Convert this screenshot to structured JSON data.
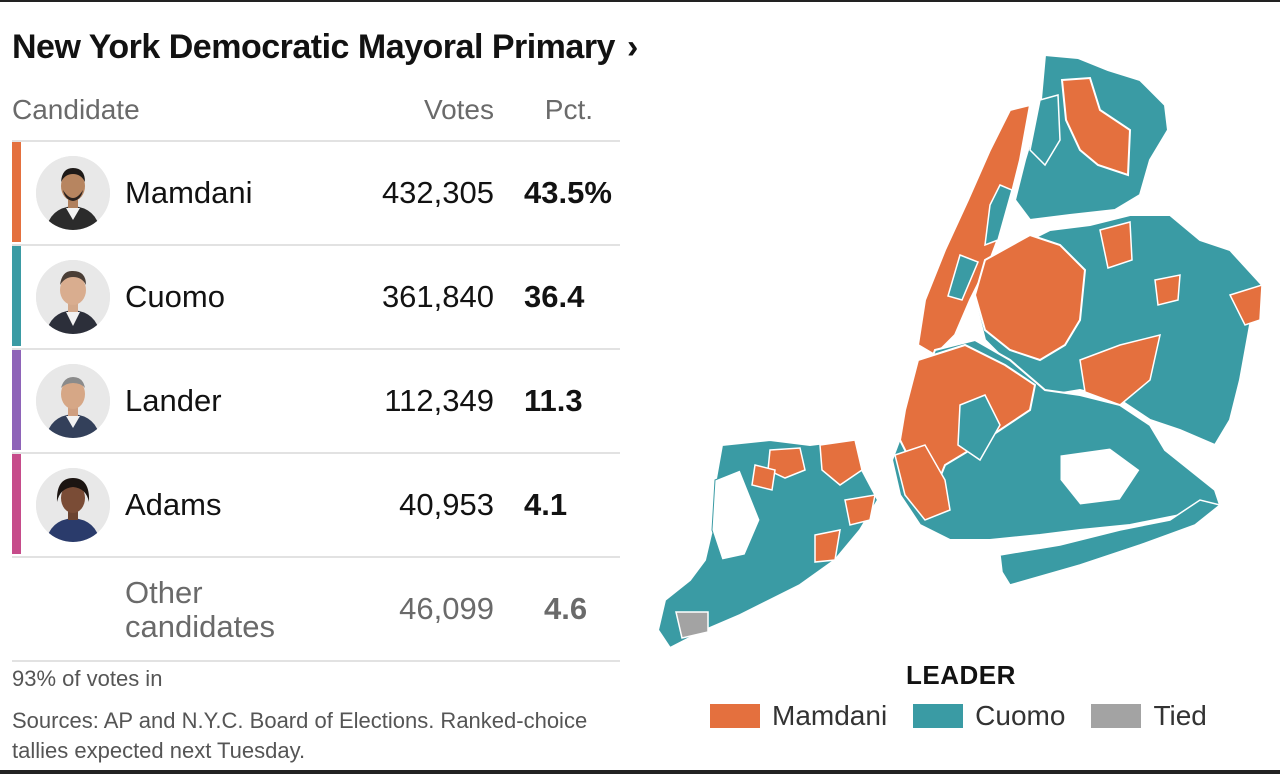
{
  "header": {
    "title": "New York Democratic Mayoral Primary",
    "title_chevron": "›"
  },
  "table": {
    "columns": {
      "candidate": "Candidate",
      "votes": "Votes",
      "pct": "Pct."
    },
    "rows": [
      {
        "name": "Mamdani",
        "votes": "432,305",
        "pct": "43.5%",
        "color": "#e4703e"
      },
      {
        "name": "Cuomo",
        "votes": "361,840",
        "pct": "36.4",
        "color": "#3a9ba4"
      },
      {
        "name": "Lander",
        "votes": "112,349",
        "pct": "11.3",
        "color": "#8e63b8"
      },
      {
        "name": "Adams",
        "votes": "40,953",
        "pct": "4.1",
        "color": "#c64b8a"
      }
    ],
    "other": {
      "name": "Other candidates",
      "votes": "46,099",
      "pct": "4.6"
    }
  },
  "footer": {
    "reporting": "93% of votes in",
    "sources": "Sources: AP and N.Y.C. Board of Elections. Ranked-choice tallies expected next Tuesday."
  },
  "legend": {
    "title": "LEADER",
    "items": [
      {
        "label": "Mamdani",
        "color": "#e4703e"
      },
      {
        "label": "Cuomo",
        "color": "#3a9ba4"
      },
      {
        "label": "Tied",
        "color": "#a3a3a3"
      }
    ]
  },
  "colors": {
    "mamdani": "#e4703e",
    "cuomo": "#3a9ba4",
    "tied": "#a3a3a3",
    "rule": "#e2e2e2"
  }
}
